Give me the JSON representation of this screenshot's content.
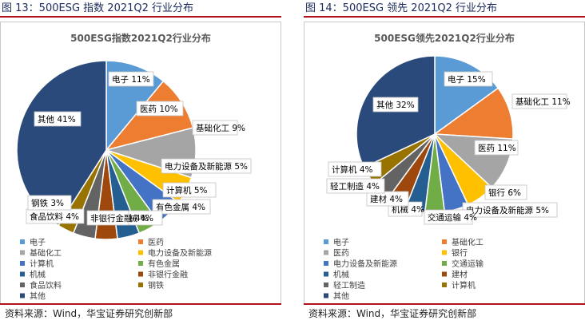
{
  "chart_data": [
    {
      "type": "pie",
      "figure_title": "图 13：500ESG 指数 2021Q2 行业分布",
      "title": "500ESG指数2021Q2行业分布",
      "slices": [
        {
          "name": "电子",
          "value": 11,
          "label": "电子 11%",
          "color": "#5b9bd5"
        },
        {
          "name": "医药",
          "value": 10,
          "label": "医药 10%",
          "color": "#ed7d31"
        },
        {
          "name": "基础化工",
          "value": 9,
          "label": "基础化工 9%",
          "color": "#a5a5a5"
        },
        {
          "name": "电力设备及新能源",
          "value": 5,
          "label": "电力设备及新能源 5%",
          "color": "#ffc000"
        },
        {
          "name": "计算机",
          "value": 5,
          "label": "计算机 5%",
          "color": "#4472c4"
        },
        {
          "name": "有色金属",
          "value": 4,
          "label": "有色金属 4%",
          "color": "#70ad47"
        },
        {
          "name": "机械",
          "value": 4,
          "label": "机械 4%",
          "color": "#255e91"
        },
        {
          "name": "非银行金融",
          "value": 4,
          "label": "非银行金融 4%",
          "color": "#9e480e"
        },
        {
          "name": "食品饮料",
          "value": 4,
          "label": "食品饮料 4%",
          "color": "#636363"
        },
        {
          "name": "钢铁",
          "value": 3,
          "label": "钢铁 3%",
          "color": "#997300"
        },
        {
          "name": "其他",
          "value": 41,
          "label": "其他 41%",
          "color": "#2a4a7b"
        }
      ],
      "legend_placement": "bottom",
      "source": "资料来源：Wind，华宝证券研究创新部"
    },
    {
      "type": "pie",
      "figure_title": "图 14：500ESG 领先 2021Q2 行业分布",
      "title": "500ESG领先2021Q2行业分布",
      "slices": [
        {
          "name": "电子",
          "value": 15,
          "label": "电子 15%",
          "color": "#5b9bd5"
        },
        {
          "name": "基础化工",
          "value": 11,
          "label": "基础化工 11%",
          "color": "#ed7d31"
        },
        {
          "name": "医药",
          "value": 11,
          "label": "医药 11%",
          "color": "#a5a5a5"
        },
        {
          "name": "银行",
          "value": 6,
          "label": "银行 6%",
          "color": "#ffc000"
        },
        {
          "name": "电力设备及新能源",
          "value": 5,
          "label": "电力设备及新能源 5%",
          "color": "#4472c4"
        },
        {
          "name": "交通运输",
          "value": 4,
          "label": "交通运输 4%",
          "color": "#70ad47"
        },
        {
          "name": "机械",
          "value": 4,
          "label": "机械 4%",
          "color": "#255e91"
        },
        {
          "name": "建材",
          "value": 4,
          "label": "建材 4%",
          "color": "#9e480e"
        },
        {
          "name": "轻工制造",
          "value": 4,
          "label": "轻工制造 4%",
          "color": "#636363"
        },
        {
          "name": "计算机",
          "value": 4,
          "label": "计算机 4%",
          "color": "#997300"
        },
        {
          "name": "其他",
          "value": 32,
          "label": "其他 32%",
          "color": "#2a4a7b"
        }
      ],
      "legend_placement": "bottom",
      "source": "资料来源：Wind，华宝证券研究创新部"
    }
  ]
}
